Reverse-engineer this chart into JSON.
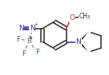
{
  "bg_color": "#ffffff",
  "bond_color": "#2a2a2a",
  "atom_colors": {
    "N": "#3030a0",
    "O": "#c03030",
    "B": "#707070",
    "F": "#208020",
    "C": "#2a2a2a"
  },
  "figsize": [
    1.36,
    0.94
  ],
  "dpi": 100,
  "lw": 1.1,
  "fs": 6.5
}
